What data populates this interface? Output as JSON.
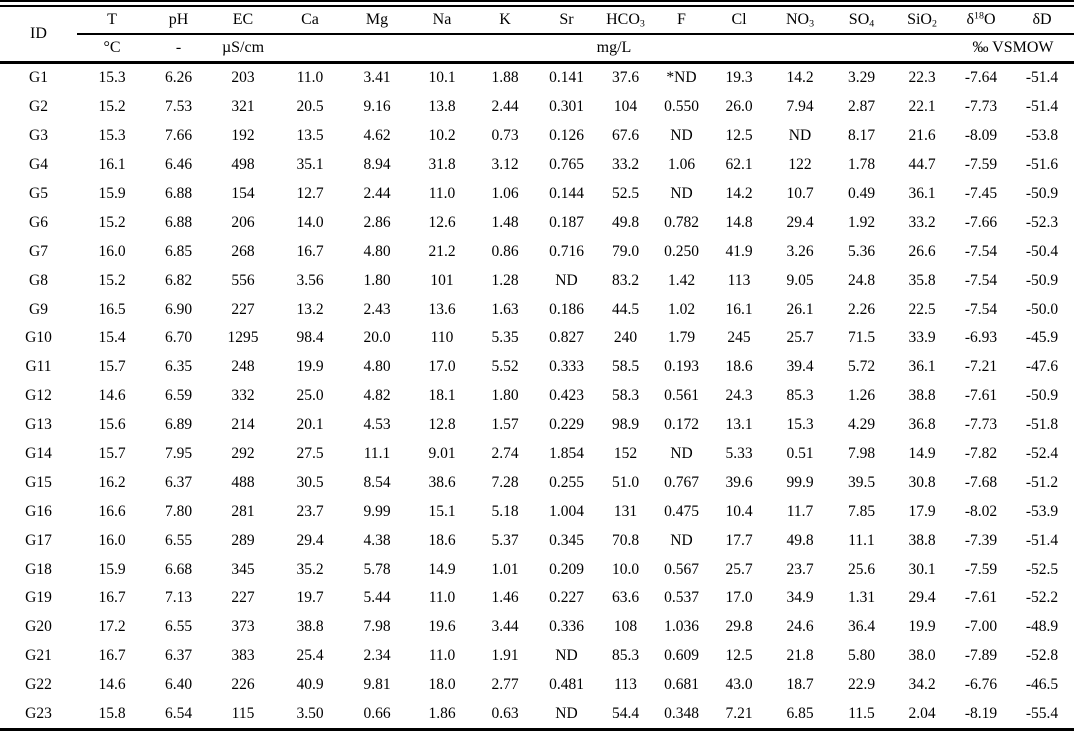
{
  "table": {
    "id_label": "ID",
    "columns": [
      {
        "key": "T",
        "parts": [
          {
            "t": "T"
          }
        ]
      },
      {
        "key": "pH",
        "parts": [
          {
            "t": "pH"
          }
        ]
      },
      {
        "key": "EC",
        "parts": [
          {
            "t": "EC"
          }
        ]
      },
      {
        "key": "Ca",
        "parts": [
          {
            "t": "Ca"
          }
        ]
      },
      {
        "key": "Mg",
        "parts": [
          {
            "t": "Mg"
          }
        ]
      },
      {
        "key": "Na",
        "parts": [
          {
            "t": "Na"
          }
        ]
      },
      {
        "key": "K",
        "parts": [
          {
            "t": "K"
          }
        ]
      },
      {
        "key": "Sr",
        "parts": [
          {
            "t": "Sr"
          }
        ]
      },
      {
        "key": "HCO3",
        "parts": [
          {
            "t": "HCO"
          },
          {
            "sub": "3"
          }
        ]
      },
      {
        "key": "F",
        "parts": [
          {
            "t": "F"
          }
        ]
      },
      {
        "key": "Cl",
        "parts": [
          {
            "t": "Cl"
          }
        ]
      },
      {
        "key": "NO3",
        "parts": [
          {
            "t": "NO"
          },
          {
            "sub": "3"
          }
        ]
      },
      {
        "key": "SO4",
        "parts": [
          {
            "t": "SO"
          },
          {
            "sub": "4"
          }
        ]
      },
      {
        "key": "SiO2",
        "parts": [
          {
            "t": "SiO"
          },
          {
            "sub": "2"
          }
        ]
      },
      {
        "key": "d18O",
        "parts": [
          {
            "t": "δ"
          },
          {
            "sup": "18"
          },
          {
            "t": "O"
          }
        ]
      },
      {
        "key": "dD",
        "parts": [
          {
            "t": "δD"
          }
        ]
      }
    ],
    "units": [
      {
        "name": "temperature-celsius",
        "text": "°C",
        "span": 1
      },
      {
        "name": "ph-dimensionless",
        "text": "-",
        "span": 1
      },
      {
        "name": "conductivity-us-cm",
        "text": "µS/cm",
        "span": 1
      },
      {
        "name": "concentration-mg-l",
        "text": "mg/L",
        "span": 11
      },
      {
        "name": "permil-vsmow",
        "text": "‰ VSMOW",
        "span": 2
      }
    ],
    "rows": [
      [
        "G1",
        "15.3",
        "6.26",
        "203",
        "11.0",
        "3.41",
        "10.1",
        "1.88",
        "0.141",
        "37.6",
        "*ND",
        "19.3",
        "14.2",
        "3.29",
        "22.3",
        "-7.64",
        "-51.4"
      ],
      [
        "G2",
        "15.2",
        "7.53",
        "321",
        "20.5",
        "9.16",
        "13.8",
        "2.44",
        "0.301",
        "104",
        "0.550",
        "26.0",
        "7.94",
        "2.87",
        "22.1",
        "-7.73",
        "-51.4"
      ],
      [
        "G3",
        "15.3",
        "7.66",
        "192",
        "13.5",
        "4.62",
        "10.2",
        "0.73",
        "0.126",
        "67.6",
        "ND",
        "12.5",
        "ND",
        "8.17",
        "21.6",
        "-8.09",
        "-53.8"
      ],
      [
        "G4",
        "16.1",
        "6.46",
        "498",
        "35.1",
        "8.94",
        "31.8",
        "3.12",
        "0.765",
        "33.2",
        "1.06",
        "62.1",
        "122",
        "1.78",
        "44.7",
        "-7.59",
        "-51.6"
      ],
      [
        "G5",
        "15.9",
        "6.88",
        "154",
        "12.7",
        "2.44",
        "11.0",
        "1.06",
        "0.144",
        "52.5",
        "ND",
        "14.2",
        "10.7",
        "0.49",
        "36.1",
        "-7.45",
        "-50.9"
      ],
      [
        "G6",
        "15.2",
        "6.88",
        "206",
        "14.0",
        "2.86",
        "12.6",
        "1.48",
        "0.187",
        "49.8",
        "0.782",
        "14.8",
        "29.4",
        "1.92",
        "33.2",
        "-7.66",
        "-52.3"
      ],
      [
        "G7",
        "16.0",
        "6.85",
        "268",
        "16.7",
        "4.80",
        "21.2",
        "0.86",
        "0.716",
        "79.0",
        "0.250",
        "41.9",
        "3.26",
        "5.36",
        "26.6",
        "-7.54",
        "-50.4"
      ],
      [
        "G8",
        "15.2",
        "6.82",
        "556",
        "3.56",
        "1.80",
        "101",
        "1.28",
        "ND",
        "83.2",
        "1.42",
        "113",
        "9.05",
        "24.8",
        "35.8",
        "-7.54",
        "-50.9"
      ],
      [
        "G9",
        "16.5",
        "6.90",
        "227",
        "13.2",
        "2.43",
        "13.6",
        "1.63",
        "0.186",
        "44.5",
        "1.02",
        "16.1",
        "26.1",
        "2.26",
        "22.5",
        "-7.54",
        "-50.0"
      ],
      [
        "G10",
        "15.4",
        "6.70",
        "1295",
        "98.4",
        "20.0",
        "110",
        "5.35",
        "0.827",
        "240",
        "1.79",
        "245",
        "25.7",
        "71.5",
        "33.9",
        "-6.93",
        "-45.9"
      ],
      [
        "G11",
        "15.7",
        "6.35",
        "248",
        "19.9",
        "4.80",
        "17.0",
        "5.52",
        "0.333",
        "58.5",
        "0.193",
        "18.6",
        "39.4",
        "5.72",
        "36.1",
        "-7.21",
        "-47.6"
      ],
      [
        "G12",
        "14.6",
        "6.59",
        "332",
        "25.0",
        "4.82",
        "18.1",
        "1.80",
        "0.423",
        "58.3",
        "0.561",
        "24.3",
        "85.3",
        "1.26",
        "38.8",
        "-7.61",
        "-50.9"
      ],
      [
        "G13",
        "15.6",
        "6.89",
        "214",
        "20.1",
        "4.53",
        "12.8",
        "1.57",
        "0.229",
        "98.9",
        "0.172",
        "13.1",
        "15.3",
        "4.29",
        "36.8",
        "-7.73",
        "-51.8"
      ],
      [
        "G14",
        "15.7",
        "7.95",
        "292",
        "27.5",
        "11.1",
        "9.01",
        "2.74",
        "1.854",
        "152",
        "ND",
        "5.33",
        "0.51",
        "7.98",
        "14.9",
        "-7.82",
        "-52.4"
      ],
      [
        "G15",
        "16.2",
        "6.37",
        "488",
        "30.5",
        "8.54",
        "38.6",
        "7.28",
        "0.255",
        "51.0",
        "0.767",
        "39.6",
        "99.9",
        "39.5",
        "30.8",
        "-7.68",
        "-51.2"
      ],
      [
        "G16",
        "16.6",
        "7.80",
        "281",
        "23.7",
        "9.99",
        "15.1",
        "5.18",
        "1.004",
        "131",
        "0.475",
        "10.4",
        "11.7",
        "7.85",
        "17.9",
        "-8.02",
        "-53.9"
      ],
      [
        "G17",
        "16.0",
        "6.55",
        "289",
        "29.4",
        "4.38",
        "18.6",
        "5.37",
        "0.345",
        "70.8",
        "ND",
        "17.7",
        "49.8",
        "11.1",
        "38.8",
        "-7.39",
        "-51.4"
      ],
      [
        "G18",
        "15.9",
        "6.68",
        "345",
        "35.2",
        "5.78",
        "14.9",
        "1.01",
        "0.209",
        "10.0",
        "0.567",
        "25.7",
        "23.7",
        "25.6",
        "30.1",
        "-7.59",
        "-52.5"
      ],
      [
        "G19",
        "16.7",
        "7.13",
        "227",
        "19.7",
        "5.44",
        "11.0",
        "1.46",
        "0.227",
        "63.6",
        "0.537",
        "17.0",
        "34.9",
        "1.31",
        "29.4",
        "-7.61",
        "-52.2"
      ],
      [
        "G20",
        "17.2",
        "6.55",
        "373",
        "38.8",
        "7.98",
        "19.6",
        "3.44",
        "0.336",
        "108",
        "1.036",
        "29.8",
        "24.6",
        "36.4",
        "19.9",
        "-7.00",
        "-48.9"
      ],
      [
        "G21",
        "16.7",
        "6.37",
        "383",
        "25.4",
        "2.34",
        "11.0",
        "1.91",
        "ND",
        "85.3",
        "0.609",
        "12.5",
        "21.8",
        "5.80",
        "38.0",
        "-7.89",
        "-52.8"
      ],
      [
        "G22",
        "14.6",
        "6.40",
        "226",
        "40.9",
        "9.81",
        "18.0",
        "2.77",
        "0.481",
        "113",
        "0.681",
        "43.0",
        "18.7",
        "22.9",
        "34.2",
        "-6.76",
        "-46.5"
      ],
      [
        "G23",
        "15.8",
        "6.54",
        "115",
        "3.50",
        "0.66",
        "1.86",
        "0.63",
        "ND",
        "54.4",
        "0.348",
        "7.21",
        "6.85",
        "11.5",
        "2.04",
        "-8.19",
        "-55.4"
      ]
    ],
    "colors": {
      "text": "#000000",
      "background": "#ffffff",
      "rule": "#000000"
    }
  }
}
